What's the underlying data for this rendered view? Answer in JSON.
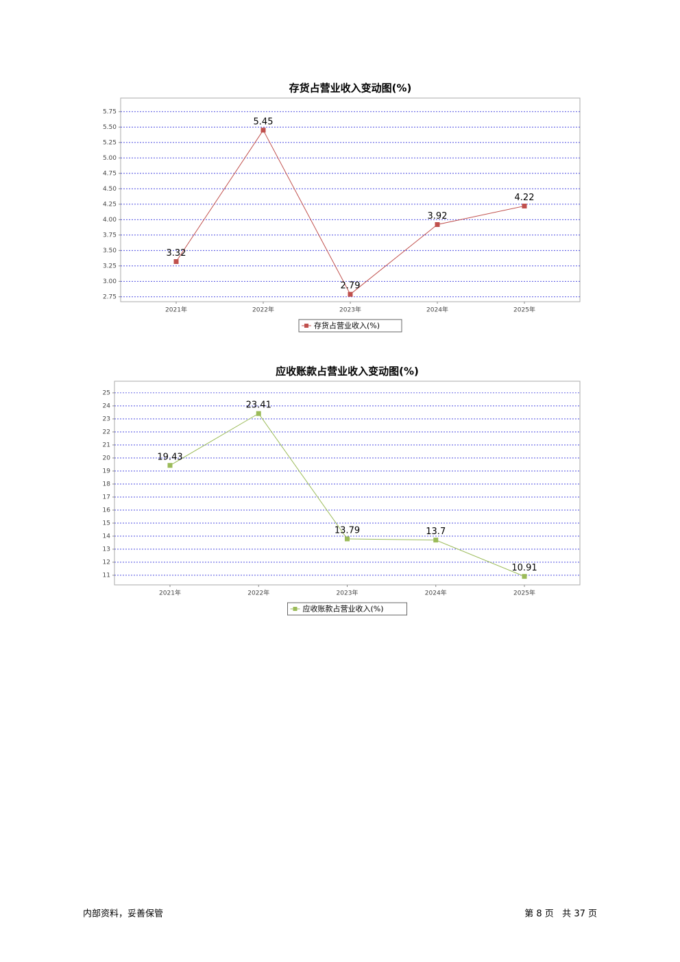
{
  "chart_data": [
    {
      "type": "line",
      "title": "存货占营业收入变动图(%)",
      "categories": [
        "2021年",
        "2022年",
        "2023年",
        "2024年",
        "2025年"
      ],
      "series": [
        {
          "name": "存货占营业收入(%)",
          "color": "#c0504d",
          "values": [
            3.32,
            5.45,
            2.79,
            3.92,
            4.22
          ]
        }
      ],
      "ylim": [
        2.67,
        5.97
      ],
      "yticks": [
        2.75,
        {
          "value": 3,
          "label": "3.00"
        },
        3.25,
        {
          "value": 3.5,
          "label": "3.50"
        },
        3.75,
        {
          "value": 4,
          "label": "4.00"
        },
        4.25,
        {
          "value": 4.5,
          "label": "4.50"
        },
        4.75,
        {
          "value": 5,
          "label": "5.00"
        },
        5.25,
        {
          "value": 5.5,
          "label": "5.50"
        },
        5.75
      ],
      "grid": true
    },
    {
      "type": "line",
      "title": "应收账款占营业收入变动图(%)",
      "categories": [
        "2021年",
        "2022年",
        "2023年",
        "2024年",
        "2025年"
      ],
      "series": [
        {
          "name": "应收账款占营业收入(%)",
          "color": "#9bbb59",
          "values": [
            19.43,
            23.41,
            13.79,
            13.7,
            10.91
          ]
        }
      ],
      "ylim": [
        10.26,
        25.89
      ],
      "yticks": [
        11,
        12,
        13,
        14,
        15,
        16,
        17,
        18,
        19,
        20,
        21,
        22,
        23,
        24,
        25
      ],
      "grid": true
    }
  ],
  "footer": {
    "left": "内部资料，妥善保管",
    "right": "第 8 页   共 37 页"
  }
}
